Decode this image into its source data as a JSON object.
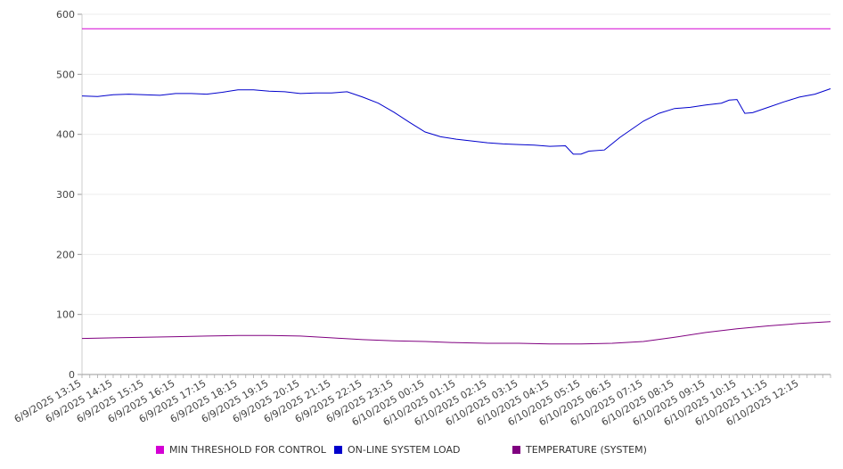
{
  "chart_data": {
    "type": "line",
    "title": "",
    "xlabel": "",
    "ylabel": "",
    "ylim": [
      0,
      600
    ],
    "yticks": [
      0,
      100,
      200,
      300,
      400,
      500,
      600
    ],
    "xlim": [
      "6/9/2025 13:15",
      "6/10/2025 13:15"
    ],
    "x_tick_labels": [
      "6/9/2025 13:15",
      "6/9/2025 14:15",
      "6/9/2025 15:15",
      "6/9/2025 16:15",
      "6/9/2025 17:15",
      "6/9/2025 18:15",
      "6/9/2025 19:15",
      "6/9/2025 20:15",
      "6/9/2025 21:15",
      "6/9/2025 22:15",
      "6/9/2025 23:15",
      "6/10/2025 00:15",
      "6/10/2025 01:15",
      "6/10/2025 02:15",
      "6/10/2025 03:15",
      "6/10/2025 04:15",
      "6/10/2025 05:15",
      "6/10/2025 06:15",
      "6/10/2025 07:15",
      "6/10/2025 08:15",
      "6/10/2025 09:15",
      "6/10/2025 10:15",
      "6/10/2025 11:15",
      "6/10/2025 12:15"
    ],
    "grid": "horizontal",
    "legend_position": "bottom",
    "series": [
      {
        "name": "MIN THRESHOLD FOR CONTROL",
        "color": "#d400d4",
        "points": [
          [
            "6/9/2025 13:15",
            576
          ],
          [
            "6/10/2025 13:15",
            576
          ]
        ]
      },
      {
        "name": "ON-LINE SYSTEM LOAD",
        "color": "#0000cc",
        "points": [
          [
            "6/9/2025 13:15",
            464
          ],
          [
            "6/9/2025 13:45",
            463
          ],
          [
            "6/9/2025 14:15",
            466
          ],
          [
            "6/9/2025 14:45",
            467
          ],
          [
            "6/9/2025 15:15",
            466
          ],
          [
            "6/9/2025 15:45",
            465
          ],
          [
            "6/9/2025 16:15",
            468
          ],
          [
            "6/9/2025 16:45",
            468
          ],
          [
            "6/9/2025 17:15",
            467
          ],
          [
            "6/9/2025 17:45",
            470
          ],
          [
            "6/9/2025 18:15",
            474
          ],
          [
            "6/9/2025 18:45",
            474
          ],
          [
            "6/9/2025 19:15",
            472
          ],
          [
            "6/9/2025 19:45",
            471
          ],
          [
            "6/9/2025 20:15",
            468
          ],
          [
            "6/9/2025 20:45",
            469
          ],
          [
            "6/9/2025 21:15",
            469
          ],
          [
            "6/9/2025 21:45",
            471
          ],
          [
            "6/9/2025 22:15",
            462
          ],
          [
            "6/9/2025 22:45",
            452
          ],
          [
            "6/9/2025 23:15",
            437
          ],
          [
            "6/9/2025 23:45",
            420
          ],
          [
            "6/10/2025 00:15",
            404
          ],
          [
            "6/10/2025 00:45",
            396
          ],
          [
            "6/10/2025 01:15",
            392
          ],
          [
            "6/10/2025 01:45",
            389
          ],
          [
            "6/10/2025 02:15",
            386
          ],
          [
            "6/10/2025 02:45",
            384
          ],
          [
            "6/10/2025 03:15",
            383
          ],
          [
            "6/10/2025 03:45",
            382
          ],
          [
            "6/10/2025 04:15",
            380
          ],
          [
            "6/10/2025 04:45",
            381
          ],
          [
            "6/10/2025 05:00",
            367
          ],
          [
            "6/10/2025 05:15",
            367
          ],
          [
            "6/10/2025 05:30",
            372
          ],
          [
            "6/10/2025 06:00",
            374
          ],
          [
            "6/10/2025 06:30",
            395
          ],
          [
            "6/10/2025 07:15",
            422
          ],
          [
            "6/10/2025 07:45",
            435
          ],
          [
            "6/10/2025 08:15",
            443
          ],
          [
            "6/10/2025 08:45",
            445
          ],
          [
            "6/10/2025 09:15",
            449
          ],
          [
            "6/10/2025 09:45",
            452
          ],
          [
            "6/10/2025 10:00",
            457
          ],
          [
            "6/10/2025 10:15",
            458
          ],
          [
            "6/10/2025 10:30",
            435
          ],
          [
            "6/10/2025 10:45",
            436
          ],
          [
            "6/10/2025 11:15",
            445
          ],
          [
            "6/10/2025 11:45",
            454
          ],
          [
            "6/10/2025 12:15",
            462
          ],
          [
            "6/10/2025 12:45",
            467
          ],
          [
            "6/10/2025 13:15",
            476
          ]
        ]
      },
      {
        "name": "TEMPERATURE (SYSTEM)",
        "color": "#800080",
        "points": [
          [
            "6/9/2025 13:15",
            60
          ],
          [
            "6/9/2025 14:15",
            61
          ],
          [
            "6/9/2025 15:15",
            62
          ],
          [
            "6/9/2025 16:15",
            63
          ],
          [
            "6/9/2025 17:15",
            64
          ],
          [
            "6/9/2025 18:15",
            65
          ],
          [
            "6/9/2025 19:15",
            65
          ],
          [
            "6/9/2025 20:15",
            64
          ],
          [
            "6/9/2025 21:15",
            61
          ],
          [
            "6/9/2025 22:15",
            58
          ],
          [
            "6/9/2025 23:15",
            56
          ],
          [
            "6/10/2025 00:15",
            55
          ],
          [
            "6/10/2025 01:15",
            53
          ],
          [
            "6/10/2025 02:15",
            52
          ],
          [
            "6/10/2025 03:15",
            52
          ],
          [
            "6/10/2025 04:15",
            51
          ],
          [
            "6/10/2025 05:15",
            51
          ],
          [
            "6/10/2025 06:15",
            52
          ],
          [
            "6/10/2025 07:15",
            55
          ],
          [
            "6/10/2025 08:15",
            62
          ],
          [
            "6/10/2025 09:15",
            70
          ],
          [
            "6/10/2025 10:15",
            76
          ],
          [
            "6/10/2025 11:15",
            81
          ],
          [
            "6/10/2025 12:15",
            85
          ],
          [
            "6/10/2025 13:15",
            88
          ]
        ]
      }
    ]
  }
}
